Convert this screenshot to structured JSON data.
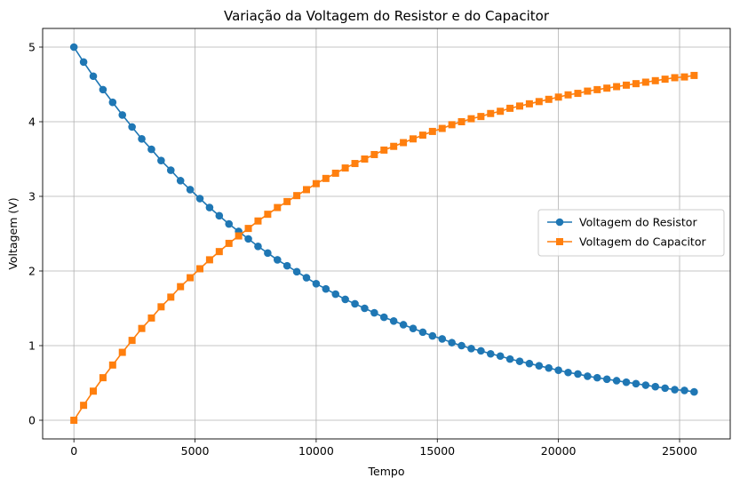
{
  "chart_data": {
    "type": "line",
    "title": "Variação da Voltagem do Resistor e do Capacitor",
    "xlabel": "Tempo",
    "ylabel": "Voltagem (V)",
    "xlim": [
      -1290,
      27090
    ],
    "ylim": [
      -0.25,
      5.25
    ],
    "xticks": [
      0,
      5000,
      10000,
      15000,
      20000,
      25000
    ],
    "yticks": [
      0,
      1,
      2,
      3,
      4,
      5
    ],
    "grid": true,
    "legend_position": "center-right",
    "x": [
      0,
      400,
      800,
      1200,
      1600,
      2000,
      2400,
      2800,
      3200,
      3600,
      4000,
      4400,
      4800,
      5200,
      5600,
      6000,
      6400,
      6800,
      7200,
      7600,
      8000,
      8400,
      8800,
      9200,
      9600,
      10000,
      10400,
      10800,
      11200,
      11600,
      12000,
      12400,
      12800,
      13200,
      13600,
      14000,
      14400,
      14800,
      15200,
      15600,
      16000,
      16400,
      16800,
      17200,
      17600,
      18000,
      18400,
      18800,
      19200,
      19600,
      20000,
      20400,
      20800,
      21200,
      21600,
      22000,
      22400,
      22800,
      23200,
      23600,
      24000,
      24400,
      24800,
      25200,
      25600
    ],
    "series": [
      {
        "name": "Voltagem do Resistor",
        "color": "#1f77b4",
        "marker": "circle",
        "values": [
          5.0,
          4.8,
          4.61,
          4.43,
          4.26,
          4.09,
          3.93,
          3.77,
          3.63,
          3.48,
          3.35,
          3.21,
          3.09,
          2.97,
          2.85,
          2.74,
          2.63,
          2.53,
          2.43,
          2.33,
          2.24,
          2.15,
          2.07,
          1.99,
          1.91,
          1.83,
          1.76,
          1.69,
          1.62,
          1.56,
          1.5,
          1.44,
          1.38,
          1.33,
          1.28,
          1.23,
          1.18,
          1.13,
          1.09,
          1.04,
          1.0,
          0.96,
          0.93,
          0.89,
          0.86,
          0.82,
          0.79,
          0.76,
          0.73,
          0.7,
          0.67,
          0.64,
          0.62,
          0.59,
          0.57,
          0.55,
          0.53,
          0.51,
          0.49,
          0.47,
          0.45,
          0.43,
          0.41,
          0.4,
          0.38
        ]
      },
      {
        "name": "Voltagem do Capacitor",
        "color": "#ff7f0e",
        "marker": "square",
        "values": [
          0.0,
          0.2,
          0.39,
          0.57,
          0.74,
          0.91,
          1.07,
          1.23,
          1.37,
          1.52,
          1.65,
          1.79,
          1.91,
          2.03,
          2.15,
          2.26,
          2.37,
          2.47,
          2.57,
          2.67,
          2.76,
          2.85,
          2.93,
          3.01,
          3.09,
          3.17,
          3.24,
          3.31,
          3.38,
          3.44,
          3.5,
          3.56,
          3.62,
          3.67,
          3.72,
          3.77,
          3.82,
          3.87,
          3.91,
          3.96,
          4.0,
          4.04,
          4.07,
          4.11,
          4.14,
          4.18,
          4.21,
          4.24,
          4.27,
          4.3,
          4.33,
          4.36,
          4.38,
          4.41,
          4.43,
          4.45,
          4.47,
          4.49,
          4.51,
          4.53,
          4.55,
          4.57,
          4.59,
          4.6,
          4.62
        ]
      }
    ]
  }
}
